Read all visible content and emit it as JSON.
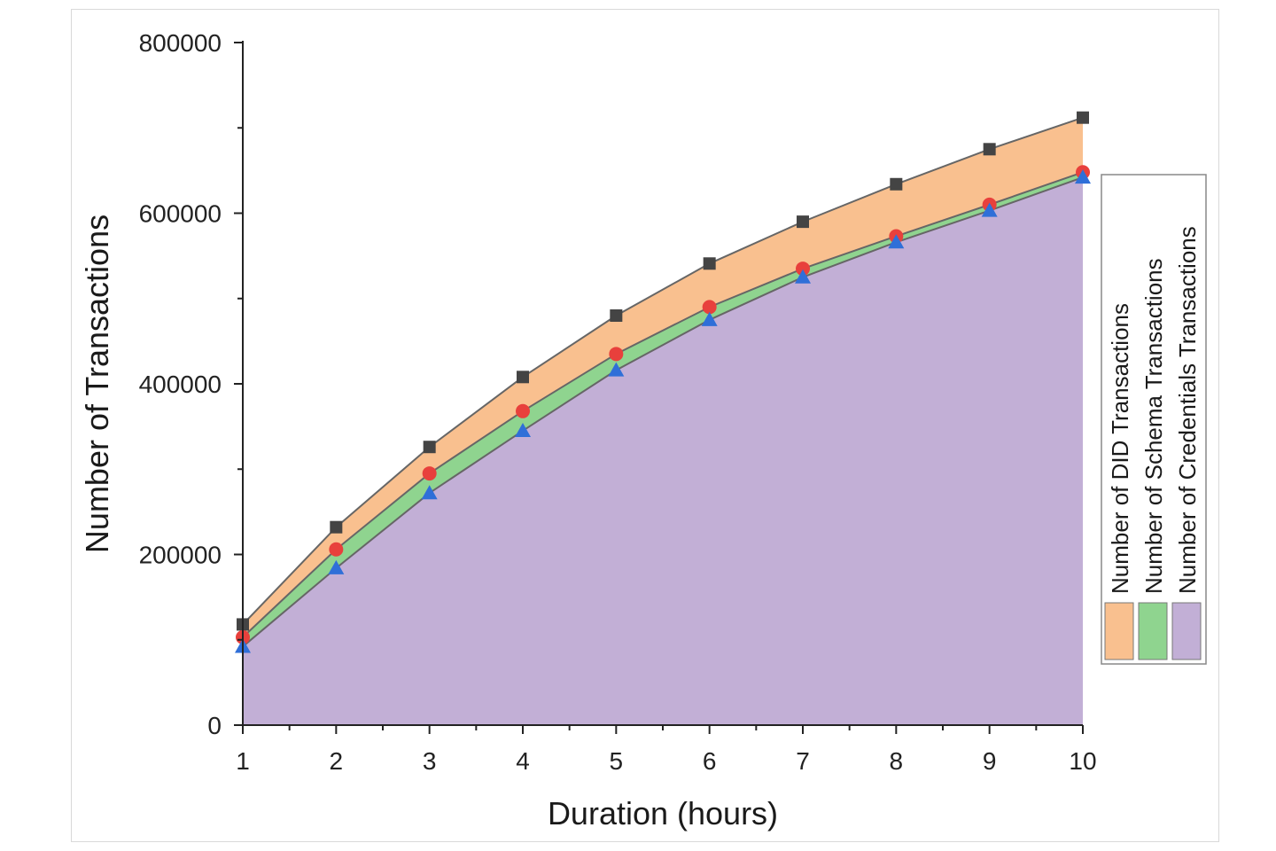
{
  "chart_data": {
    "type": "area",
    "stacked": false,
    "x": [
      1,
      2,
      3,
      4,
      5,
      6,
      7,
      8,
      9,
      10
    ],
    "series": [
      {
        "name": "Number of DID Transactions",
        "color": "#f9c08f",
        "line_color": "#666666",
        "marker": "square",
        "marker_color": "#444444",
        "values": [
          118000,
          232000,
          326000,
          408000,
          480000,
          541000,
          590000,
          634000,
          675000,
          712000
        ]
      },
      {
        "name": "Number of Schema Transactions",
        "color": "#8fd48f",
        "line_color": "#666666",
        "marker": "circle",
        "marker_color": "#e8403c",
        "values": [
          103000,
          206000,
          295000,
          368000,
          435000,
          490000,
          535000,
          573000,
          610000,
          648000
        ]
      },
      {
        "name": "Number of Credentials Transactions",
        "color": "#c2afd6",
        "line_color": "#666666",
        "marker": "triangle",
        "marker_color": "#2f6fd8",
        "values": [
          92000,
          184000,
          272000,
          345000,
          416000,
          475000,
          525000,
          566000,
          603000,
          642000
        ]
      }
    ],
    "xlabel": "Duration (hours)",
    "ylabel": "Number of Transactions",
    "xlim": [
      1,
      10
    ],
    "ylim": [
      0,
      800000
    ],
    "xticks": [
      "1",
      "2",
      "3",
      "4",
      "5",
      "6",
      "7",
      "8",
      "9",
      "10"
    ],
    "yticks": [
      "0",
      "200000",
      "400000",
      "600000",
      "800000"
    ],
    "grid": false,
    "legend_position": "right"
  }
}
